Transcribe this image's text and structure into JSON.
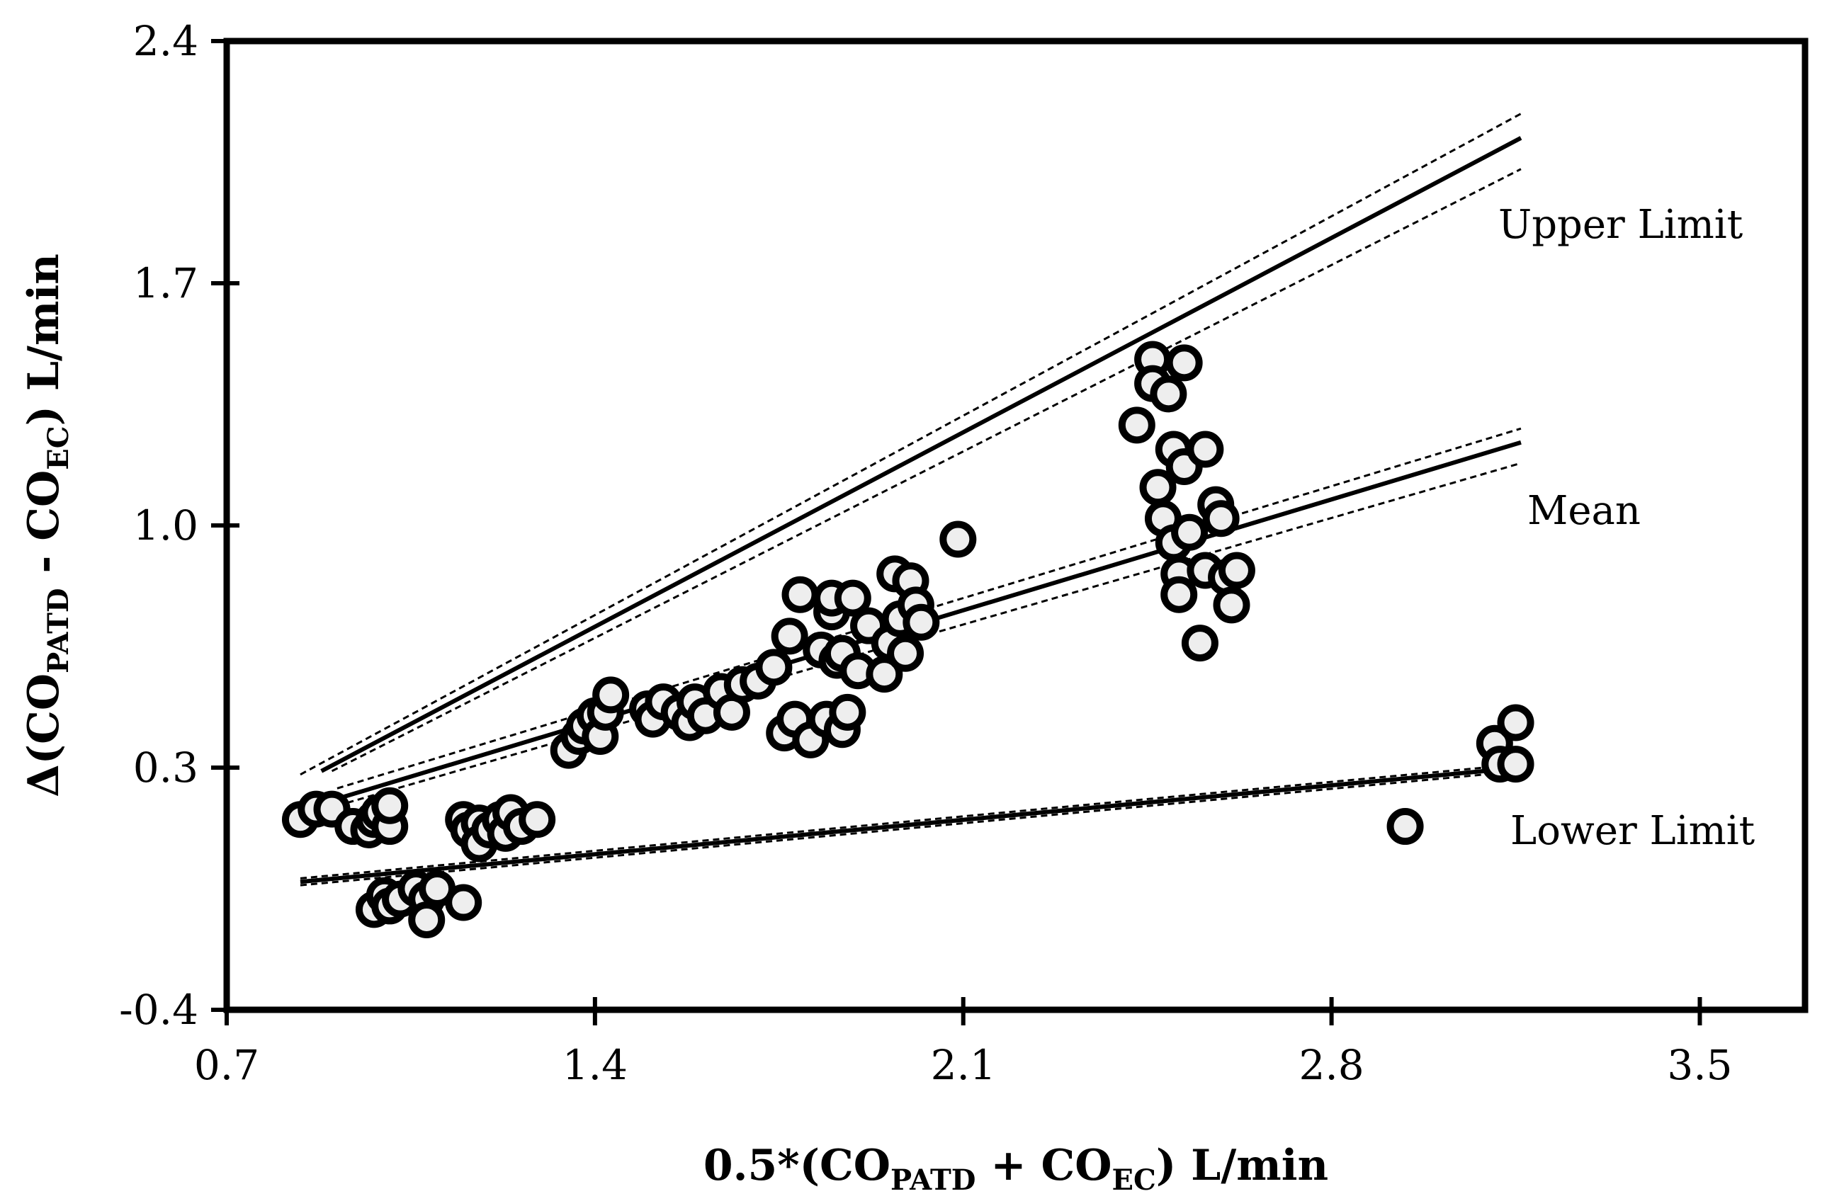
{
  "chart_data": {
    "type": "scatter",
    "xlabel": {
      "main": "0.5*(CO",
      "sub1": "PATD",
      "mid": " + CO",
      "sub2": "EC",
      "end": ") L/min"
    },
    "ylabel": {
      "main": "Δ(CO",
      "sub1": "PATD",
      "mid": " - CO",
      "sub2": "EC",
      "end": ") L/min"
    },
    "xlim": [
      0.7,
      3.7
    ],
    "ylim": [
      -0.4,
      2.4
    ],
    "x_ticks": [
      "0.7",
      "1.4",
      "2.1",
      "2.8",
      "3.5"
    ],
    "y_ticks": [
      "-0.4",
      "0.3",
      "1.0",
      "1.7",
      "2.4"
    ],
    "series_labels": {
      "upper": "Upper Limit",
      "mean": "Mean",
      "lower": "Lower Limit"
    },
    "lines": [
      {
        "name": "Upper Limit",
        "style": "solid",
        "x": [
          0.88,
          3.16
        ],
        "y": [
          0.29,
          2.12
        ]
      },
      {
        "name": "Upper Limit CI upper",
        "style": "dashed",
        "x": [
          0.84,
          3.16
        ],
        "y": [
          0.28,
          2.19
        ]
      },
      {
        "name": "Upper Limit CI lower",
        "style": "dashed",
        "x": [
          0.9,
          3.16
        ],
        "y": [
          0.29,
          2.03
        ]
      },
      {
        "name": "Mean",
        "style": "solid",
        "x": [
          0.91,
          3.16
        ],
        "y": [
          0.21,
          1.24
        ]
      },
      {
        "name": "Mean CI upper",
        "style": "dashed",
        "x": [
          0.91,
          3.16
        ],
        "y": [
          0.24,
          1.28
        ]
      },
      {
        "name": "Mean CI lower",
        "style": "dashed",
        "x": [
          0.91,
          3.16
        ],
        "y": [
          0.19,
          1.18
        ]
      },
      {
        "name": "Lower Limit",
        "style": "solid",
        "x": [
          0.84,
          3.16
        ],
        "y": [
          -0.03,
          0.3
        ]
      },
      {
        "name": "Lower Limit CI upper",
        "style": "dashed",
        "x": [
          0.84,
          3.16
        ],
        "y": [
          -0.02,
          0.31
        ]
      },
      {
        "name": "Lower Limit CI lower",
        "style": "dashed",
        "x": [
          0.84,
          3.16
        ],
        "y": [
          -0.04,
          0.29
        ]
      }
    ],
    "points": [
      [
        0.84,
        0.15
      ],
      [
        0.87,
        0.18
      ],
      [
        0.9,
        0.18
      ],
      [
        0.94,
        0.13
      ],
      [
        0.97,
        0.12
      ],
      [
        0.98,
        0.15
      ],
      [
        0.99,
        0.17
      ],
      [
        1.01,
        0.13
      ],
      [
        1.01,
        0.19
      ],
      [
        0.98,
        -0.11
      ],
      [
        1.0,
        -0.07
      ],
      [
        1.01,
        -0.1
      ],
      [
        1.03,
        -0.08
      ],
      [
        1.06,
        -0.05
      ],
      [
        1.08,
        -0.08
      ],
      [
        1.08,
        -0.14
      ],
      [
        1.1,
        -0.05
      ],
      [
        1.15,
        -0.09
      ],
      [
        1.15,
        0.15
      ],
      [
        1.16,
        0.12
      ],
      [
        1.18,
        0.14
      ],
      [
        1.18,
        0.08
      ],
      [
        1.2,
        0.12
      ],
      [
        1.22,
        0.15
      ],
      [
        1.23,
        0.11
      ],
      [
        1.24,
        0.17
      ],
      [
        1.26,
        0.13
      ],
      [
        1.29,
        0.15
      ],
      [
        1.35,
        0.35
      ],
      [
        1.37,
        0.39
      ],
      [
        1.38,
        0.42
      ],
      [
        1.4,
        0.45
      ],
      [
        1.41,
        0.39
      ],
      [
        1.42,
        0.46
      ],
      [
        1.43,
        0.51
      ],
      [
        1.5,
        0.47
      ],
      [
        1.51,
        0.44
      ],
      [
        1.53,
        0.49
      ],
      [
        1.56,
        0.46
      ],
      [
        1.58,
        0.43
      ],
      [
        1.59,
        0.49
      ],
      [
        1.61,
        0.45
      ],
      [
        1.64,
        0.52
      ],
      [
        1.66,
        0.46
      ],
      [
        1.68,
        0.54
      ],
      [
        1.71,
        0.55
      ],
      [
        1.74,
        0.59
      ],
      [
        1.76,
        0.4
      ],
      [
        1.77,
        0.68
      ],
      [
        1.78,
        0.44
      ],
      [
        1.79,
        0.8
      ],
      [
        1.81,
        0.38
      ],
      [
        1.83,
        0.64
      ],
      [
        1.84,
        0.44
      ],
      [
        1.85,
        0.75
      ],
      [
        1.85,
        0.79
      ],
      [
        1.86,
        0.61
      ],
      [
        1.87,
        0.63
      ],
      [
        1.87,
        0.41
      ],
      [
        1.88,
        0.46
      ],
      [
        1.89,
        0.79
      ],
      [
        1.9,
        0.58
      ],
      [
        1.92,
        0.71
      ],
      [
        1.95,
        0.57
      ],
      [
        1.96,
        0.66
      ],
      [
        1.97,
        0.86
      ],
      [
        1.98,
        0.73
      ],
      [
        1.99,
        0.63
      ],
      [
        2.0,
        0.84
      ],
      [
        2.01,
        0.77
      ],
      [
        2.02,
        0.72
      ],
      [
        2.09,
        0.96
      ],
      [
        2.43,
        1.29
      ],
      [
        2.46,
        1.48
      ],
      [
        2.46,
        1.41
      ],
      [
        2.47,
        1.11
      ],
      [
        2.48,
        1.02
      ],
      [
        2.49,
        1.38
      ],
      [
        2.5,
        1.22
      ],
      [
        2.5,
        0.95
      ],
      [
        2.51,
        0.86
      ],
      [
        2.51,
        0.8
      ],
      [
        2.52,
        1.47
      ],
      [
        2.52,
        1.17
      ],
      [
        2.53,
        0.98
      ],
      [
        2.55,
        0.66
      ],
      [
        2.56,
        0.87
      ],
      [
        2.56,
        1.22
      ],
      [
        2.58,
        1.06
      ],
      [
        2.59,
        1.02
      ],
      [
        2.6,
        0.85
      ],
      [
        2.61,
        0.77
      ],
      [
        2.62,
        0.87
      ],
      [
        2.94,
        0.13
      ],
      [
        3.11,
        0.37
      ],
      [
        3.12,
        0.31
      ],
      [
        3.15,
        0.43
      ],
      [
        3.15,
        0.31
      ]
    ]
  }
}
